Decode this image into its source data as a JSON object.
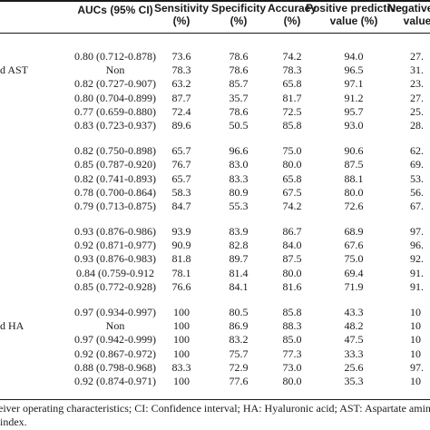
{
  "headers": [
    "AUCs (95% CI)",
    "Sensitivity (%)",
    "Specificity (%)",
    "Accuracy (%)",
    "Positive predictive value (%)",
    "Negative pr value"
  ],
  "header_lines": [
    [
      "AUCs (95% CI)"
    ],
    [
      "Sensitivity",
      "(%)"
    ],
    [
      "Specificity",
      "(%)"
    ],
    [
      "Accuracy",
      "(%)"
    ],
    [
      "Positive predictive",
      "value (%)"
    ],
    [
      "Negative pr",
      "value"
    ]
  ],
  "row_labels": [
    {
      "row": 1,
      "text": "d AST"
    },
    {
      "row": 27,
      "text": "d HA"
    }
  ],
  "rows": [
    [
      "0.80 (0.712-0.878)",
      "73.6",
      "78.6",
      "74.2",
      "94.0",
      "27."
    ],
    [
      "Non",
      "78.3",
      "78.6",
      "78.3",
      "96.5",
      "31."
    ],
    [
      "0.82 (0.727-0.907)",
      "63.2",
      "85.7",
      "65.8",
      "97.1",
      "23."
    ],
    [
      "0.80 (0.704-0.899)",
      "87.7",
      "35.7",
      "81.7",
      "91.2",
      "27."
    ],
    [
      "0.77 (0.659-0.880)",
      "72.4",
      "78.6",
      "72.5",
      "95.7",
      "25."
    ],
    [
      "0.83 (0.723-0.937)",
      "89.6",
      "50.5",
      "85.8",
      "93.0",
      "28."
    ],
    [
      "",
      "",
      "",
      "",
      "",
      ""
    ],
    [
      "0.82 (0.750-0.898)",
      "65.7",
      "96.6",
      "75.0",
      "90.6",
      "62."
    ],
    [
      "0.85 (0.787-0.920)",
      "76.7",
      "83.0",
      "80.0",
      "87.5",
      "69."
    ],
    [
      "0.82 (0.741-0.893)",
      "65.7",
      "83.3",
      "65.8",
      "88.1",
      "53."
    ],
    [
      "0.78 (0.700-0.864)",
      "58.3",
      "80.9",
      "67.5",
      "80.0",
      "56."
    ],
    [
      "0.79 (0.713-0.875)",
      "84.7",
      "55.3",
      "74.2",
      "72.6",
      "67."
    ],
    [
      "",
      "",
      "",
      "",
      "",
      ""
    ],
    [
      "0.93 (0.876-0.986)",
      "93.9",
      "83.9",
      "86.7",
      "68.9",
      "97."
    ],
    [
      "0.92 (0.871-0.977)",
      "90.9",
      "82.8",
      "84.0",
      "67.6",
      "96."
    ],
    [
      "0.93 (0.876-0.983)",
      "81.8",
      "89.7",
      "87.5",
      "75.0",
      "92."
    ],
    [
      "0.84 (0.759-0.912",
      "78.1",
      "81.4",
      "80.0",
      "69.4",
      "91."
    ],
    [
      "0.85 (0.772-0.928)",
      "76.6",
      "84.1",
      "81.6",
      "71.9",
      "91."
    ],
    [
      "",
      "",
      "",
      "",
      "",
      ""
    ],
    [
      "0.97 (0.934-0.997)",
      "100",
      "80.5",
      "85.8",
      "43.3",
      "10"
    ],
    [
      "Non",
      "100",
      "86.9",
      "88.3",
      "48.2",
      "10"
    ],
    [
      "0.97 (0.942-0.999)",
      "100",
      "83.2",
      "85.0",
      "47.5",
      "10"
    ],
    [
      "0.92 (0.867-0.972)",
      "100",
      "75.7",
      "77.3",
      "33.3",
      "10"
    ],
    [
      "0.88 (0.798-0.968)",
      "83.3",
      "72.9",
      "73.0",
      "25.6",
      "97."
    ],
    [
      "0.92 (0.874-0.971)",
      "100",
      "77.6",
      "80.0",
      "35.3",
      "10"
    ]
  ],
  "footnote_lines": [
    "eiver operating characteristics; CI: Confidence interval; HA: Hyaluronic acid; AST: Aspartate amin",
    "index."
  ]
}
